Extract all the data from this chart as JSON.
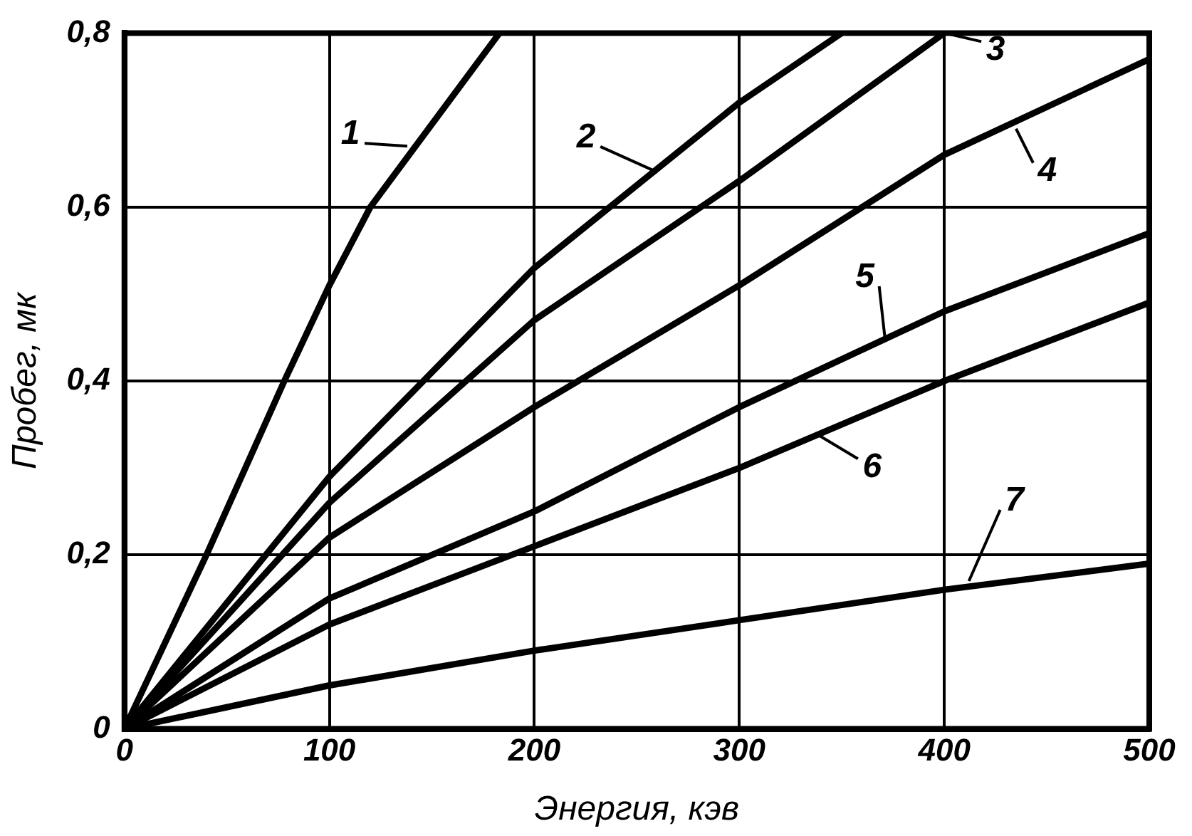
{
  "chart_data": {
    "type": "line",
    "xlabel": "Энергия, кэв",
    "ylabel": "Пробег, мк",
    "xlim": [
      0,
      500
    ],
    "xticks": [
      0,
      100,
      200,
      300,
      400,
      500
    ],
    "ylim": [
      0,
      0.8
    ],
    "yticks": [
      {
        "value": 0,
        "label": "0"
      },
      {
        "value": 0.2,
        "label": "0,2"
      },
      {
        "value": 0.4,
        "label": "0,4"
      },
      {
        "value": 0.6,
        "label": "0,6"
      },
      {
        "value": 0.8,
        "label": "0,8"
      }
    ],
    "grid": true,
    "legend": false,
    "marker": "none",
    "line_style": "solid",
    "series": [
      {
        "color": "#000000",
        "x": [
          0,
          40,
          78,
          100,
          120,
          183
        ],
        "values": [
          0,
          0.2,
          0.4,
          0.51,
          0.6,
          0.8
        ]
      },
      {
        "color": "#000000",
        "x": [
          0,
          100,
          200,
          300,
          350
        ],
        "values": [
          0,
          0.29,
          0.53,
          0.72,
          0.8
        ]
      },
      {
        "color": "#000000",
        "x": [
          0,
          100,
          200,
          300,
          400
        ],
        "values": [
          0,
          0.26,
          0.47,
          0.63,
          0.8
        ]
      },
      {
        "color": "#000000",
        "x": [
          0,
          100,
          200,
          300,
          400,
          500
        ],
        "values": [
          0,
          0.22,
          0.37,
          0.51,
          0.66,
          0.77
        ]
      },
      {
        "color": "#000000",
        "x": [
          0,
          100,
          200,
          300,
          400,
          500
        ],
        "values": [
          0,
          0.15,
          0.25,
          0.37,
          0.48,
          0.57
        ]
      },
      {
        "color": "#000000",
        "x": [
          0,
          100,
          200,
          300,
          400,
          500
        ],
        "values": [
          0,
          0.12,
          0.21,
          0.3,
          0.4,
          0.49
        ]
      },
      {
        "color": "#000000",
        "x": [
          0,
          100,
          200,
          300,
          400,
          500
        ],
        "values": [
          0,
          0.05,
          0.09,
          0.125,
          0.16,
          0.19
        ]
      }
    ],
    "annotations": [
      {
        "text": "1",
        "x": 138,
        "y": 0.67
      },
      {
        "text": "2",
        "x": 260,
        "y": 0.64
      },
      {
        "text": "3",
        "x": 400,
        "y": 0.8
      },
      {
        "text": "4",
        "x": 435,
        "y": 0.69
      },
      {
        "text": "5",
        "x": 371,
        "y": 0.45
      },
      {
        "text": "6",
        "x": 337,
        "y": 0.34
      },
      {
        "text": "7",
        "x": 412,
        "y": 0.17
      }
    ]
  }
}
